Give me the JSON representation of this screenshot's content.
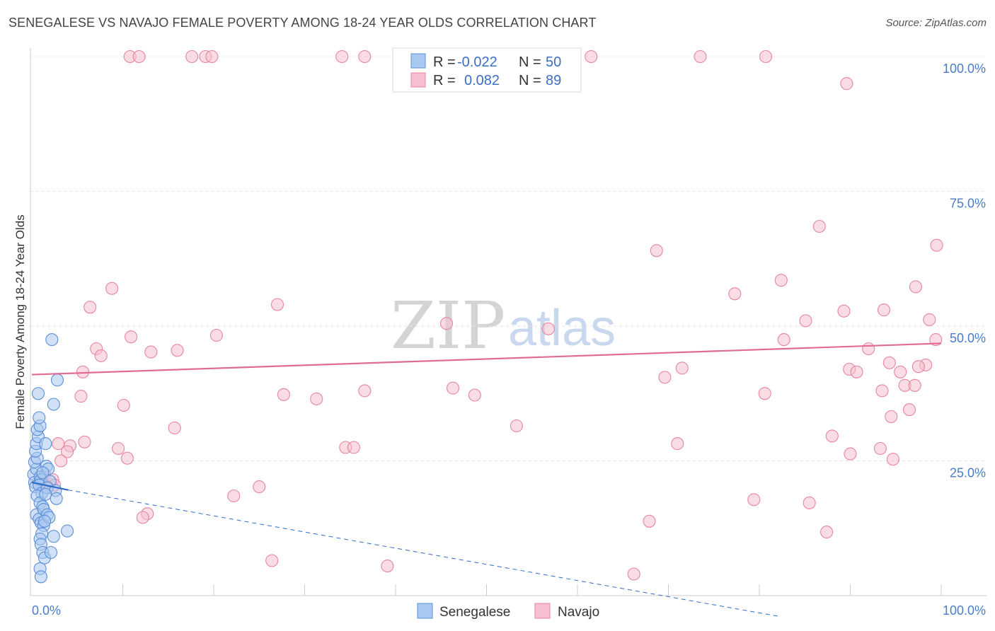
{
  "header": {
    "title": "SENEGALESE VS NAVAJO FEMALE POVERTY AMONG 18-24 YEAR OLDS CORRELATION CHART",
    "source": "Source: ZipAtlas.com"
  },
  "watermark": {
    "zip": "ZIP",
    "atlas": "atlas"
  },
  "legend": {
    "senegalese": {
      "r_label": "R =",
      "r_value": "-0.022",
      "n_label": "N =",
      "n_value": "50"
    },
    "navajo": {
      "r_label": "R =",
      "r_value": "0.082",
      "n_label": "N =",
      "n_value": "89"
    }
  },
  "colors": {
    "senegalese_fill": "#a9c8f0",
    "senegalese_stroke": "#5b8fd6",
    "senegalese_line": "#2e6cc7",
    "navajo_fill": "#f6bfd0",
    "navajo_stroke": "#e7859f",
    "navajo_line": "#e06b93",
    "grid": "#e3e3e3",
    "tick_text": "#4a7cc9"
  },
  "chart_data": {
    "type": "scatter",
    "title": "SENEGALESE VS NAVAJO FEMALE POVERTY AMONG 18-24 YEAR OLDS CORRELATION CHART",
    "xlabel": "",
    "ylabel": "Female Poverty Among 18-24 Year Olds",
    "xlim": [
      0,
      100
    ],
    "ylim": [
      0,
      100
    ],
    "x_tick_labels": [
      "0.0%",
      "100.0%"
    ],
    "y_tick_labels": [
      "25.0%",
      "50.0%",
      "75.0%",
      "100.0%"
    ],
    "y_ticks": [
      25,
      50,
      75,
      100
    ],
    "grid": true,
    "legend_position": "top-center",
    "series": [
      {
        "name": "Senegalese",
        "r": -0.022,
        "n": 50,
        "trend": {
          "x": [
            0,
            4
          ],
          "y": [
            21.0,
            19.6
          ]
        },
        "trend_extension": {
          "x": [
            4,
            82
          ],
          "y": [
            19.6,
            -3.8
          ]
        },
        "points": [
          [
            0.2,
            22.5
          ],
          [
            0.3,
            21.0
          ],
          [
            0.4,
            20.2
          ],
          [
            0.5,
            23.5
          ],
          [
            0.3,
            24.8
          ],
          [
            0.6,
            25.5
          ],
          [
            0.4,
            26.8
          ],
          [
            0.5,
            28.2
          ],
          [
            0.7,
            29.5
          ],
          [
            0.6,
            30.8
          ],
          [
            0.9,
            31.5
          ],
          [
            0.8,
            33.0
          ],
          [
            0.7,
            37.5
          ],
          [
            0.9,
            22.0
          ],
          [
            1.0,
            21.5
          ],
          [
            0.8,
            20.5
          ],
          [
            1.1,
            19.0
          ],
          [
            0.6,
            18.5
          ],
          [
            0.9,
            17.2
          ],
          [
            1.2,
            16.5
          ],
          [
            0.5,
            15.0
          ],
          [
            0.8,
            14.2
          ],
          [
            1.0,
            13.5
          ],
          [
            1.3,
            13.0
          ],
          [
            1.1,
            11.5
          ],
          [
            0.9,
            10.5
          ],
          [
            1.0,
            9.5
          ],
          [
            1.2,
            8.0
          ],
          [
            1.4,
            7.0
          ],
          [
            0.9,
            5.0
          ],
          [
            1.0,
            3.5
          ],
          [
            2.2,
            47.5
          ],
          [
            2.8,
            40.0
          ],
          [
            2.4,
            35.5
          ],
          [
            1.5,
            28.2
          ],
          [
            1.6,
            24.0
          ],
          [
            1.8,
            23.5
          ],
          [
            1.2,
            22.8
          ],
          [
            2.0,
            21.2
          ],
          [
            1.7,
            20.0
          ],
          [
            2.6,
            19.5
          ],
          [
            1.5,
            18.8
          ],
          [
            2.7,
            18.0
          ],
          [
            1.3,
            16.0
          ],
          [
            1.7,
            15.0
          ],
          [
            1.9,
            14.5
          ],
          [
            1.4,
            13.8
          ],
          [
            3.9,
            12.0
          ],
          [
            2.4,
            11.0
          ],
          [
            2.1,
            8.0
          ]
        ]
      },
      {
        "name": "Navajo",
        "r": 0.082,
        "n": 89,
        "trend": {
          "x": [
            0,
            100
          ],
          "y": [
            41.0,
            46.8
          ]
        },
        "points": [
          [
            10.8,
            100
          ],
          [
            11.8,
            100
          ],
          [
            17.6,
            100
          ],
          [
            19.1,
            100
          ],
          [
            19.8,
            100
          ],
          [
            34.1,
            100
          ],
          [
            36.6,
            100
          ],
          [
            61.5,
            100
          ],
          [
            73.5,
            100
          ],
          [
            80.7,
            100
          ],
          [
            89.6,
            95.0
          ],
          [
            86.6,
            68.5
          ],
          [
            68.7,
            64.0
          ],
          [
            99.5,
            65.0
          ],
          [
            77.3,
            56.0
          ],
          [
            82.4,
            58.5
          ],
          [
            97.2,
            57.3
          ],
          [
            8.8,
            57.0
          ],
          [
            6.4,
            53.5
          ],
          [
            27.0,
            54.0
          ],
          [
            89.3,
            52.8
          ],
          [
            93.7,
            53.0
          ],
          [
            85.1,
            51.0
          ],
          [
            98.7,
            51.2
          ],
          [
            45.6,
            50.5
          ],
          [
            56.8,
            49.5
          ],
          [
            10.9,
            48.0
          ],
          [
            20.3,
            48.3
          ],
          [
            82.7,
            47.5
          ],
          [
            99.4,
            47.5
          ],
          [
            7.1,
            45.8
          ],
          [
            13.1,
            45.2
          ],
          [
            16.0,
            45.5
          ],
          [
            7.6,
            44.5
          ],
          [
            92.0,
            45.8
          ],
          [
            94.3,
            43.2
          ],
          [
            98.3,
            42.8
          ],
          [
            95.5,
            41.5
          ],
          [
            89.9,
            42.0
          ],
          [
            5.6,
            41.5
          ],
          [
            97.5,
            42.5
          ],
          [
            69.6,
            40.5
          ],
          [
            71.5,
            42.2
          ],
          [
            90.7,
            41.5
          ],
          [
            46.3,
            38.5
          ],
          [
            96.0,
            39.0
          ],
          [
            97.1,
            39.0
          ],
          [
            36.6,
            38.0
          ],
          [
            48.7,
            37.2
          ],
          [
            80.6,
            37.5
          ],
          [
            93.5,
            38.0
          ],
          [
            5.4,
            37.0
          ],
          [
            27.7,
            37.3
          ],
          [
            31.3,
            36.5
          ],
          [
            10.1,
            35.3
          ],
          [
            96.5,
            34.5
          ],
          [
            94.5,
            33.2
          ],
          [
            15.7,
            31.1
          ],
          [
            53.3,
            31.5
          ],
          [
            88.0,
            29.6
          ],
          [
            2.9,
            28.2
          ],
          [
            4.2,
            27.8
          ],
          [
            5.8,
            28.5
          ],
          [
            9.5,
            27.3
          ],
          [
            34.5,
            27.5
          ],
          [
            35.4,
            27.5
          ],
          [
            71.0,
            28.2
          ],
          [
            93.3,
            27.3
          ],
          [
            3.9,
            26.7
          ],
          [
            90.0,
            26.3
          ],
          [
            94.7,
            25.3
          ],
          [
            10.5,
            25.5
          ],
          [
            3.2,
            25.0
          ],
          [
            1.4,
            22.5
          ],
          [
            2.3,
            21.5
          ],
          [
            1.0,
            21.0
          ],
          [
            2.5,
            20.5
          ],
          [
            1.7,
            20.2
          ],
          [
            25.0,
            20.2
          ],
          [
            22.2,
            18.5
          ],
          [
            79.4,
            17.8
          ],
          [
            85.5,
            17.2
          ],
          [
            12.7,
            15.2
          ],
          [
            12.2,
            14.5
          ],
          [
            67.9,
            13.8
          ],
          [
            87.4,
            11.8
          ],
          [
            26.4,
            6.5
          ],
          [
            39.1,
            5.5
          ],
          [
            66.2,
            4.0
          ]
        ]
      }
    ]
  }
}
